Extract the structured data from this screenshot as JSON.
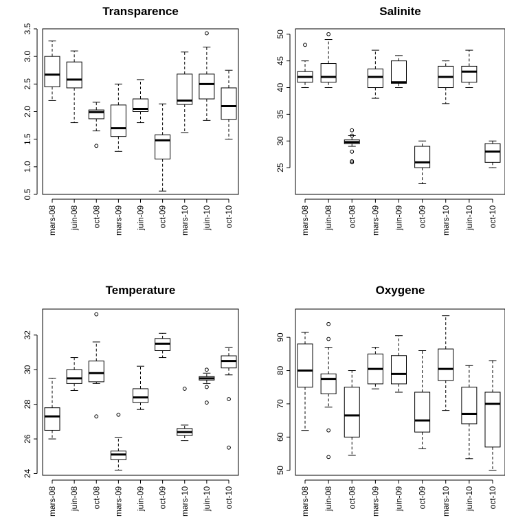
{
  "chart_data": [
    {
      "type": "boxplot",
      "title": "Transparence",
      "categories": [
        "mars-08",
        "juin-08",
        "oct-08",
        "mars-09",
        "juin-09",
        "oct-09",
        "mars-10",
        "juin-10",
        "oct-10"
      ],
      "ylim": [
        0.5,
        3.5
      ],
      "yticks": [
        0.5,
        1.0,
        1.5,
        2.0,
        2.5,
        3.0,
        3.5
      ],
      "ytick_labels": [
        "0.5",
        "1.0",
        "1.5",
        "2.0",
        "2.5",
        "3.0",
        "3.5"
      ],
      "boxes": [
        {
          "min": 2.2,
          "q1": 2.45,
          "median": 2.67,
          "q3": 3.0,
          "max": 3.28,
          "outliers": []
        },
        {
          "min": 1.8,
          "q1": 2.43,
          "median": 2.58,
          "q3": 2.9,
          "max": 3.1,
          "outliers": []
        },
        {
          "min": 1.65,
          "q1": 1.87,
          "median": 1.99,
          "q3": 2.03,
          "max": 2.17,
          "outliers": [
            1.38
          ]
        },
        {
          "min": 1.28,
          "q1": 1.55,
          "median": 1.7,
          "q3": 2.12,
          "max": 2.5,
          "outliers": []
        },
        {
          "min": 1.8,
          "q1": 2.0,
          "median": 2.05,
          "q3": 2.23,
          "max": 2.58,
          "outliers": []
        },
        {
          "min": 0.56,
          "q1": 1.14,
          "median": 1.48,
          "q3": 1.58,
          "max": 2.14,
          "outliers": []
        },
        {
          "min": 1.62,
          "q1": 2.13,
          "median": 2.2,
          "q3": 2.68,
          "max": 3.08,
          "outliers": []
        },
        {
          "min": 1.84,
          "q1": 2.23,
          "median": 2.5,
          "q3": 2.68,
          "max": 3.17,
          "outliers": [
            3.42
          ]
        },
        {
          "min": 1.5,
          "q1": 1.86,
          "median": 2.1,
          "q3": 2.43,
          "max": 2.75,
          "outliers": []
        }
      ]
    },
    {
      "type": "boxplot",
      "title": "Salinite",
      "categories": [
        "mars-08",
        "juin-08",
        "oct-08",
        "mars-09",
        "juin-09",
        "oct-09",
        "mars-10",
        "juin-10",
        "oct-10"
      ],
      "ylim": [
        20,
        51
      ],
      "yticks": [
        25,
        30,
        35,
        40,
        45,
        50
      ],
      "ytick_labels": [
        "25",
        "30",
        "35",
        "40",
        "45",
        "50"
      ],
      "boxes": [
        {
          "min": 40,
          "q1": 41,
          "median": 42,
          "q3": 43,
          "max": 45,
          "outliers": [
            48
          ]
        },
        {
          "min": 40,
          "q1": 41,
          "median": 42,
          "q3": 44.5,
          "max": 49,
          "outliers": [
            50
          ]
        },
        {
          "min": 29,
          "q1": 29.5,
          "median": 29.8,
          "q3": 30.2,
          "max": 31,
          "outliers": [
            26,
            26.2,
            28,
            31,
            32
          ]
        },
        {
          "min": 38,
          "q1": 40,
          "median": 42,
          "q3": 43.5,
          "max": 47,
          "outliers": []
        },
        {
          "min": 40,
          "q1": 40.8,
          "median": 41,
          "q3": 45,
          "max": 46,
          "outliers": []
        },
        {
          "min": 22,
          "q1": 25,
          "median": 26,
          "q3": 29,
          "max": 30,
          "outliers": []
        },
        {
          "min": 37,
          "q1": 40,
          "median": 42,
          "q3": 44,
          "max": 45,
          "outliers": []
        },
        {
          "min": 40,
          "q1": 41,
          "median": 43,
          "q3": 44,
          "max": 47,
          "outliers": []
        },
        {
          "min": 25,
          "q1": 26,
          "median": 28,
          "q3": 29.5,
          "max": 30,
          "outliers": []
        }
      ]
    },
    {
      "type": "boxplot",
      "title": "Temperature",
      "categories": [
        "mars-08",
        "juin-08",
        "oct-08",
        "mars-09",
        "juin-09",
        "oct-09",
        "mars-10",
        "juin-10",
        "oct-10"
      ],
      "ylim": [
        23.9,
        33.5
      ],
      "yticks": [
        24,
        26,
        28,
        30,
        32
      ],
      "ytick_labels": [
        "24",
        "26",
        "28",
        "30",
        "32"
      ],
      "boxes": [
        {
          "min": 26.0,
          "q1": 26.5,
          "median": 27.3,
          "q3": 27.8,
          "max": 29.5,
          "outliers": []
        },
        {
          "min": 28.8,
          "q1": 29.2,
          "median": 29.5,
          "q3": 30.0,
          "max": 30.7,
          "outliers": []
        },
        {
          "min": 29.2,
          "q1": 29.3,
          "median": 29.8,
          "q3": 30.5,
          "max": 31.6,
          "outliers": [
            27.3,
            33.2
          ]
        },
        {
          "min": 24.2,
          "q1": 24.8,
          "median": 25.1,
          "q3": 25.3,
          "max": 26.1,
          "outliers": [
            27.4
          ]
        },
        {
          "min": 27.7,
          "q1": 28.1,
          "median": 28.4,
          "q3": 28.9,
          "max": 30.2,
          "outliers": []
        },
        {
          "min": 30.7,
          "q1": 31.1,
          "median": 31.5,
          "q3": 31.8,
          "max": 32.1,
          "outliers": []
        },
        {
          "min": 25.9,
          "q1": 26.2,
          "median": 26.4,
          "q3": 26.6,
          "max": 26.8,
          "outliers": [
            28.9
          ]
        },
        {
          "min": 29.2,
          "q1": 29.4,
          "median": 29.5,
          "q3": 29.6,
          "max": 29.8,
          "outliers": [
            30.0,
            29.0,
            28.1
          ]
        },
        {
          "min": 29.7,
          "q1": 30.1,
          "median": 30.5,
          "q3": 30.8,
          "max": 31.3,
          "outliers": [
            28.3,
            25.5
          ]
        }
      ]
    },
    {
      "type": "boxplot",
      "title": "Oxygene",
      "categories": [
        "mars-08",
        "juin-08",
        "oct-08",
        "mars-09",
        "juin-09",
        "oct-09",
        "mars-10",
        "juin-10",
        "oct-10"
      ],
      "ylim": [
        48.5,
        98.5
      ],
      "yticks": [
        50,
        60,
        70,
        80,
        90
      ],
      "ytick_labels": [
        "50",
        "60",
        "70",
        "80",
        "90"
      ],
      "boxes": [
        {
          "min": 62,
          "q1": 75,
          "median": 80,
          "q3": 88,
          "max": 91.5,
          "outliers": []
        },
        {
          "min": 69,
          "q1": 73,
          "median": 77.5,
          "q3": 79,
          "max": 87,
          "outliers": [
            54,
            62,
            94,
            89.5
          ]
        },
        {
          "min": 54.5,
          "q1": 60,
          "median": 66.5,
          "q3": 75,
          "max": 80,
          "outliers": []
        },
        {
          "min": 74.5,
          "q1": 76,
          "median": 80.5,
          "q3": 85,
          "max": 87,
          "outliers": []
        },
        {
          "min": 73.5,
          "q1": 76,
          "median": 79,
          "q3": 84.5,
          "max": 90.5,
          "outliers": []
        },
        {
          "min": 56.5,
          "q1": 61.5,
          "median": 65,
          "q3": 73.5,
          "max": 86,
          "outliers": []
        },
        {
          "min": 68,
          "q1": 77,
          "median": 80.5,
          "q3": 86.5,
          "max": 96.5,
          "outliers": []
        },
        {
          "min": 53.5,
          "q1": 64,
          "median": 67,
          "q3": 75,
          "max": 81.5,
          "outliers": []
        },
        {
          "min": 50,
          "q1": 57,
          "median": 70,
          "q3": 73.5,
          "max": 83,
          "outliers": []
        }
      ]
    }
  ]
}
